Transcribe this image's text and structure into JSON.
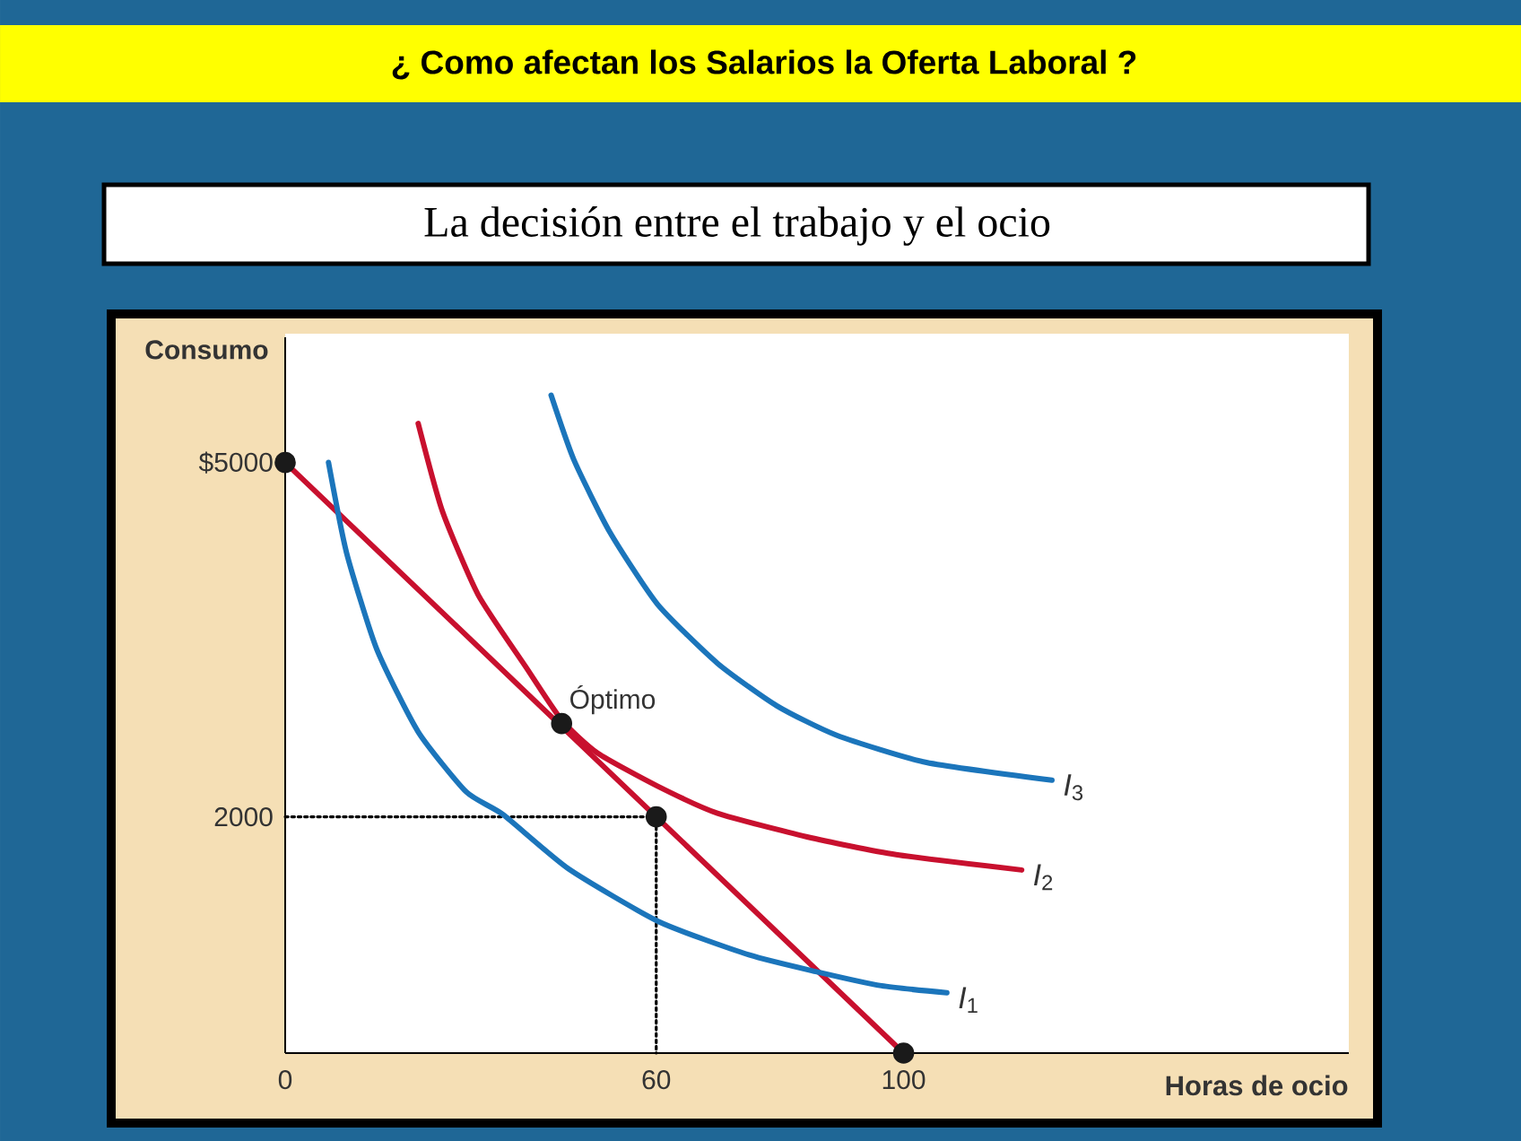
{
  "chart_data": {
    "type": "line",
    "title": "¿ Como afectan los Salarios la Oferta Laboral ?",
    "subtitle": "La decisión entre el trabajo y el ocio",
    "xlabel": "Horas de ocio",
    "ylabel": "Consumo",
    "xlim": [
      0,
      172
    ],
    "ylim": [
      0,
      6060
    ],
    "xticks": [
      0,
      60,
      100
    ],
    "yticks": [
      2000,
      {
        "value": 5000,
        "label": "$5000"
      }
    ],
    "series": [
      {
        "color": "#000000",
        "line_style": "dotted",
        "x": [
          0,
          60,
          60
        ],
        "values": [
          2000,
          2000,
          0
        ]
      },
      {
        "color": "#c8102e",
        "x": [
          0,
          100
        ],
        "values": [
          5000,
          0
        ]
      },
      {
        "name": "*I*$_{1}$",
        "color": "#1b75bb",
        "x": [
          7,
          9.9,
          14.8,
          21.5,
          29.3,
          35.2,
          45.8,
          60.5,
          75.1,
          85.8,
          96.4,
          107
        ],
        "values": [
          5000,
          4240,
          3420,
          2720,
          2210,
          2020,
          1560,
          1110,
          830,
          690,
          570,
          510
        ]
      },
      {
        "name": "*I*$_{2}$",
        "color": "#c8102e",
        "x": [
          21.5,
          25.4,
          31.2,
          38.9,
          44.7,
          50.5,
          60.2,
          69.9,
          84.4,
          98.8,
          119.1
        ],
        "values": [
          5330,
          4590,
          3880,
          3270,
          2820,
          2540,
          2260,
          2030,
          1830,
          1680,
          1550
        ]
      },
      {
        "name": "*I*$_{3}$",
        "color": "#1b75bb",
        "x": [
          43,
          46.7,
          52.5,
          60.2,
          69.9,
          79.5,
          89.2,
          103.7,
          124
        ],
        "values": [
          5570,
          5020,
          4410,
          3800,
          3300,
          2940,
          2690,
          2460,
          2310
        ]
      },
      {
        "type": "scatter",
        "color": "#1a1a1a",
        "marker": "circle",
        "x": [
          0,
          44.7,
          60,
          100
        ],
        "values": [
          5000,
          2790,
          2000,
          0
        ]
      }
    ],
    "annotations": [
      {
        "text": "Óptimo",
        "x": 44.7,
        "y": 2790
      }
    ]
  }
}
